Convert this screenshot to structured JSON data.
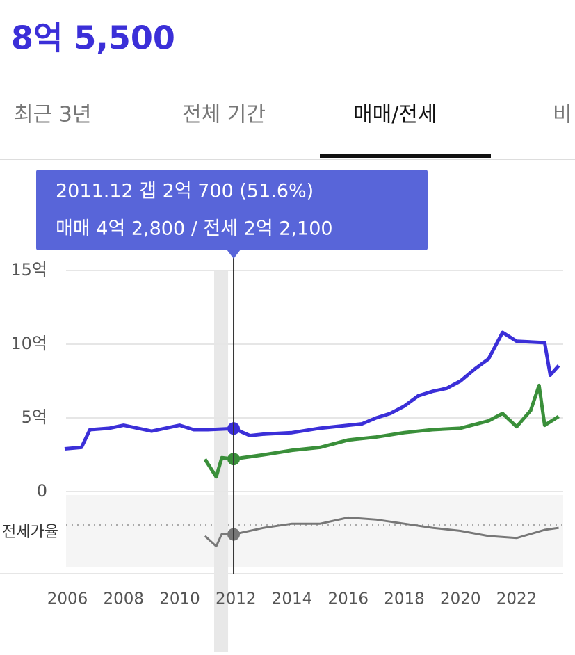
{
  "header": {
    "price": "8억 5,500"
  },
  "tabs": [
    "최근 3년",
    "전체 기간",
    "매매/전세",
    "비"
  ],
  "active_tab": 2,
  "chart_data": {
    "type": "line",
    "tooltip": [
      "2011.12  갭 2억 700 (51.6%)",
      "매매 4억 2,800 / 전세 2억 2,100"
    ],
    "ratio_label": "전세가율",
    "xlim": [
      2005.8,
      2023.7
    ],
    "xticks": [
      2006,
      2008,
      2010,
      2012,
      2014,
      2016,
      2018,
      2020,
      2022
    ],
    "ylim": [
      0,
      15
    ],
    "yticks": [
      {
        "value": 15,
        "label": "15억"
      },
      {
        "value": 10,
        "label": "10억"
      },
      {
        "value": 5,
        "label": "5억"
      },
      0
    ],
    "y2lim": [
      20,
      90
    ],
    "grid": true,
    "series": [
      {
        "name": "매매",
        "color": "#3b2fd8",
        "x": [
          2005.9,
          2006.5,
          2006.8,
          2007.5,
          2008,
          2008.5,
          2009,
          2009.5,
          2010,
          2010.5,
          2011,
          2011.92,
          2012.5,
          2013,
          2014,
          2015,
          2016,
          2016.5,
          2017,
          2017.5,
          2018,
          2018.5,
          2019,
          2019.5,
          2020,
          2020.5,
          2021,
          2021.5,
          2022,
          2023,
          2023.2,
          2023.5
        ],
        "values": [
          2.9,
          3.0,
          4.2,
          4.3,
          4.5,
          4.3,
          4.1,
          4.3,
          4.5,
          4.2,
          4.2,
          4.28,
          3.8,
          3.9,
          4.0,
          4.3,
          4.5,
          4.6,
          5.0,
          5.3,
          5.8,
          6.5,
          6.8,
          7.0,
          7.5,
          8.3,
          9.0,
          10.8,
          10.2,
          10.1,
          7.9,
          8.55
        ]
      },
      {
        "name": "전세",
        "color": "#3a8f3a",
        "x": [
          2010.9,
          2011.3,
          2011.5,
          2011.92,
          2013,
          2014,
          2015,
          2016,
          2017,
          2018,
          2019,
          2020,
          2021,
          2021.5,
          2022,
          2022.5,
          2022.8,
          2023,
          2023.5
        ],
        "values": [
          2.2,
          1.0,
          2.3,
          2.21,
          2.5,
          2.8,
          3.0,
          3.5,
          3.7,
          4.0,
          4.2,
          4.3,
          4.8,
          5.3,
          4.4,
          5.5,
          7.2,
          4.5,
          5.1
        ]
      },
      {
        "name": "전세가율",
        "color": "#777777",
        "axis": "y2",
        "x": [
          2010.9,
          2011.3,
          2011.5,
          2011.92,
          2013,
          2014,
          2015,
          2016,
          2017,
          2018,
          2019,
          2020,
          2021,
          2022,
          2023,
          2023.5
        ],
        "values": [
          50,
          40,
          52,
          51.6,
          58,
          62,
          62,
          68,
          66,
          62,
          58,
          55,
          50,
          48,
          56,
          58
        ]
      }
    ]
  }
}
